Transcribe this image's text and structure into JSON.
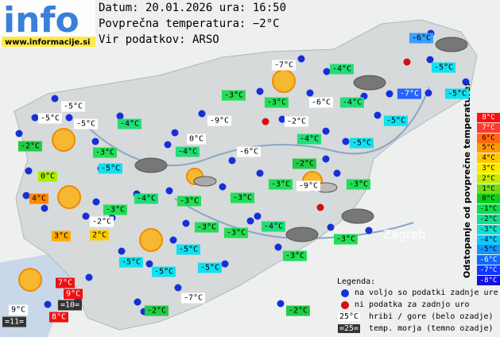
{
  "logo": {
    "text": "info",
    "url": "www.informacije.si"
  },
  "header": {
    "date_line": "Datum: 20.01.2026 ura: 16:50",
    "avg_line": "Povprečna temperatura: −2°C",
    "source_line": "Vir podatkov: ARSO"
  },
  "places": [
    "Zagreb"
  ],
  "scale": {
    "title": "Odstopanje od povprečne temperature:",
    "steps": [
      {
        "label": "8°C",
        "color": "#ff1010"
      },
      {
        "label": "7°C",
        "color": "#ff3a2a"
      },
      {
        "label": "6°C",
        "color": "#ff6a10"
      },
      {
        "label": "5°C",
        "color": "#ff9a00"
      },
      {
        "label": "4°C",
        "color": "#ffc800"
      },
      {
        "label": "3°C",
        "color": "#ffe800"
      },
      {
        "label": "2°C",
        "color": "#c8ec00"
      },
      {
        "label": "1°C",
        "color": "#70dc10"
      },
      {
        "label": "0°C",
        "color": "#10cc20"
      },
      {
        "label": "-1°C",
        "color": "#10dc50"
      },
      {
        "label": "-2°C",
        "color": "#10e090"
      },
      {
        "label": "-3°C",
        "color": "#10e0d0"
      },
      {
        "label": "-4°C",
        "color": "#10c8ff"
      },
      {
        "label": "-5°C",
        "color": "#1098ff"
      },
      {
        "label": "-6°C",
        "color": "#1068ff"
      },
      {
        "label": "-7°C",
        "color": "#1038ff"
      },
      {
        "label": "-8°C",
        "color": "#1010e0"
      }
    ]
  },
  "legend": {
    "title": "Legenda:",
    "available": "na voljo so podatki zadnje ure",
    "missing": "ni podatka za zadnjo uro",
    "mountain_sample": "25°C",
    "mountain_text": "hribi / gore (belo ozadje)",
    "sea_sample": "=25=",
    "sea_text": "temp. morja (temno ozadje)"
  },
  "stations": [
    {
      "label": "-6°C",
      "bg": "#3aa0ff",
      "fg": "#000"
    },
    {
      "label": "-7°C",
      "bg": "#ffffff",
      "fg": "#000"
    },
    {
      "label": "-4°C",
      "bg": "#22dd77",
      "fg": "#000"
    },
    {
      "label": "-5°C",
      "bg": "#10e0f0",
      "fg": "#000"
    },
    {
      "label": "-3°C",
      "bg": "#22dd55",
      "fg": "#000"
    },
    {
      "label": "-3°C",
      "bg": "#22dd55",
      "fg": "#000"
    },
    {
      "label": "-6°C",
      "bg": "#ffffff",
      "fg": "#000"
    },
    {
      "label": "-4°C",
      "bg": "#22dd77",
      "fg": "#000"
    },
    {
      "label": "-7°C",
      "bg": "#2266ff",
      "fg": "#fff"
    },
    {
      "label": "-5°C",
      "bg": "#10e0f0",
      "fg": "#000"
    },
    {
      "label": "-5°C",
      "bg": "#ffffff",
      "fg": "#000"
    },
    {
      "label": "-5°C",
      "bg": "#ffffff",
      "fg": "#000"
    },
    {
      "label": "-5°C",
      "bg": "#ffffff",
      "fg": "#000"
    },
    {
      "label": "-4°C",
      "bg": "#22dd77",
      "fg": "#000"
    },
    {
      "label": "-9°C",
      "bg": "#ffffff",
      "fg": "#000"
    },
    {
      "label": "-2°C",
      "bg": "#ffffff",
      "fg": "#000"
    },
    {
      "label": "-5°C",
      "bg": "#10e0f0",
      "fg": "#000"
    },
    {
      "label": "-2°C",
      "bg": "#22cc44",
      "fg": "#000"
    },
    {
      "label": "0°C",
      "bg": "#ffffff",
      "fg": "#000"
    },
    {
      "label": "-4°C",
      "bg": "#22dd77",
      "fg": "#000"
    },
    {
      "label": "-5°C",
      "bg": "#10e0f0",
      "fg": "#000"
    },
    {
      "label": "-3°C",
      "bg": "#22dd55",
      "fg": "#000"
    },
    {
      "label": "-4°C",
      "bg": "#22dd77",
      "fg": "#000"
    },
    {
      "label": "-6°C",
      "bg": "#ffffff",
      "fg": "#000"
    },
    {
      "label": "-2°C",
      "bg": "#22cc44",
      "fg": "#000"
    },
    {
      "label": "-5°C",
      "bg": "#10e0f0",
      "fg": "#000"
    },
    {
      "label": "0°C",
      "bg": "#aaee00",
      "fg": "#000"
    },
    {
      "label": "-3°C",
      "bg": "#22dd55",
      "fg": "#000"
    },
    {
      "label": "-9°C",
      "bg": "#ffffff",
      "fg": "#000"
    },
    {
      "label": "-3°C",
      "bg": "#22dd55",
      "fg": "#000"
    },
    {
      "label": "4°C",
      "bg": "#ff8800",
      "fg": "#000"
    },
    {
      "label": "-4°C",
      "bg": "#22dd77",
      "fg": "#000"
    },
    {
      "label": "-3°C",
      "bg": "#22dd55",
      "fg": "#000"
    },
    {
      "label": "-3°C",
      "bg": "#22dd55",
      "fg": "#000"
    },
    {
      "label": "-3°C",
      "bg": "#22dd55",
      "fg": "#000"
    },
    {
      "label": "-2°C",
      "bg": "#ffffff",
      "fg": "#000"
    },
    {
      "label": "-4°C",
      "bg": "#22dd77",
      "fg": "#000"
    },
    {
      "label": "3°C",
      "bg": "#ffaa00",
      "fg": "#000"
    },
    {
      "label": "2°C",
      "bg": "#ffcc00",
      "fg": "#000"
    },
    {
      "label": "-3°C",
      "bg": "#22dd55",
      "fg": "#000"
    },
    {
      "label": "-3°C",
      "bg": "#22dd55",
      "fg": "#000"
    },
    {
      "label": "-3°C",
      "bg": "#22dd55",
      "fg": "#000"
    },
    {
      "label": "-5°C",
      "bg": "#10e0f0",
      "fg": "#000"
    },
    {
      "label": "-3°C",
      "bg": "#22dd55",
      "fg": "#000"
    },
    {
      "label": "-5°C",
      "bg": "#10e0f0",
      "fg": "#000"
    },
    {
      "label": "-5°C",
      "bg": "#10e0f0",
      "fg": "#000"
    },
    {
      "label": "-5°C",
      "bg": "#10e0f0",
      "fg": "#000"
    },
    {
      "label": "7°C",
      "bg": "#ee1111",
      "fg": "#fff"
    },
    {
      "label": "9°C",
      "bg": "#ee1111",
      "fg": "#fff"
    },
    {
      "label": "-7°C",
      "bg": "#ffffff",
      "fg": "#000"
    },
    {
      "label": "9°C",
      "bg": "#ffffff",
      "fg": "#000"
    },
    {
      "label": "=10=",
      "bg": "#333333",
      "fg": "#fff"
    },
    {
      "label": "-2°C",
      "bg": "#22cc44",
      "fg": "#000"
    },
    {
      "label": "-2°C",
      "bg": "#22cc44",
      "fg": "#000"
    },
    {
      "label": "=11=",
      "bg": "#333333",
      "fg": "#fff"
    },
    {
      "label": "8°C",
      "bg": "#ee1111",
      "fg": "#fff"
    }
  ]
}
